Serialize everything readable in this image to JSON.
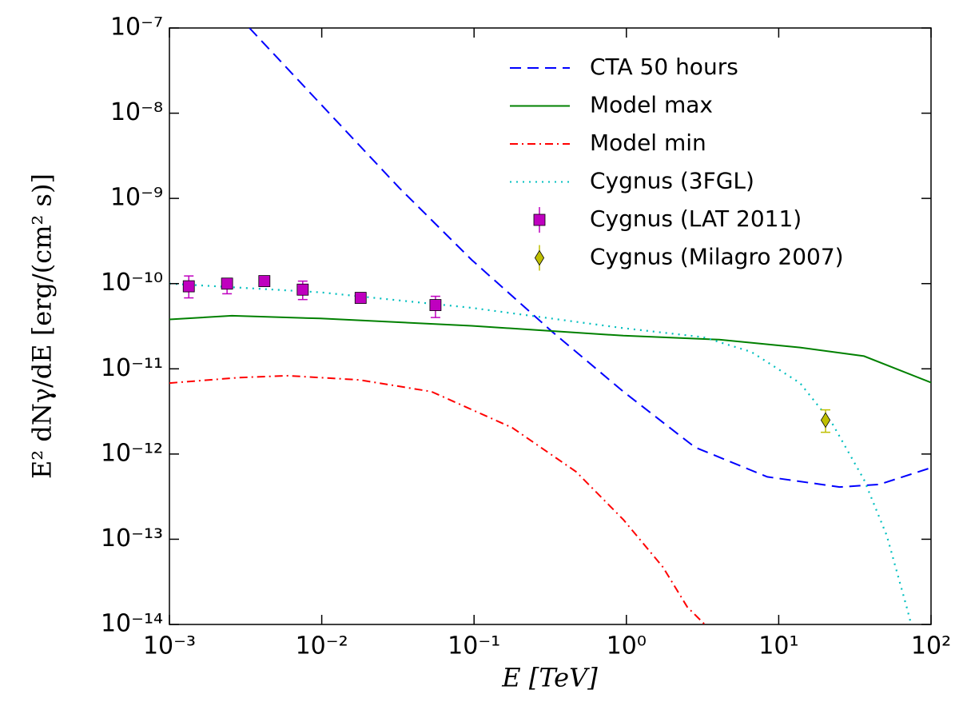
{
  "chart_data": {
    "type": "line",
    "xlabel": "E [TeV]",
    "ylabel": "E² dNγ/dE [erg/(cm² s)]",
    "xscale": "log",
    "yscale": "log",
    "xlim": [
      0.001,
      100
    ],
    "ylim": [
      1e-14,
      1e-07
    ],
    "xticks": [
      {
        "value": 0.001,
        "label": "10⁻³"
      },
      {
        "value": 0.01,
        "label": "10⁻²"
      },
      {
        "value": 0.1,
        "label": "10⁻¹"
      },
      {
        "value": 1,
        "label": "10⁰"
      },
      {
        "value": 10,
        "label": "10¹"
      },
      {
        "value": 100,
        "label": "10²"
      }
    ],
    "yticks": [
      {
        "value": 1e-14,
        "label": "10⁻¹⁴"
      },
      {
        "value": 1e-13,
        "label": "10⁻¹³"
      },
      {
        "value": 1e-12,
        "label": "10⁻¹²"
      },
      {
        "value": 1e-11,
        "label": "10⁻¹¹"
      },
      {
        "value": 1e-10,
        "label": "10⁻¹⁰"
      },
      {
        "value": 1e-09,
        "label": "10⁻⁹"
      },
      {
        "value": 1e-08,
        "label": "10⁻⁸"
      },
      {
        "value": 1e-07,
        "label": "10⁻⁷"
      }
    ],
    "legend": "upper right",
    "series": [
      {
        "name": "CTA 50 hours",
        "color": "#0000ff",
        "linestyle": "dashed",
        "x": [
          0.00335,
          0.0098,
          0.0324,
          0.0964,
          0.324,
          0.955,
          2.82,
          8.41,
          25.1,
          45.7,
          100
        ],
        "values": [
          1e-07,
          1.29e-08,
          1.32e-09,
          1.9e-10,
          2.75e-11,
          5.4e-12,
          1.2e-12,
          5.4e-13,
          4.1e-13,
          4.4e-13,
          6.9e-13
        ]
      },
      {
        "name": "Model max",
        "color": "#008000",
        "linestyle": "solid",
        "x": [
          0.001,
          0.00257,
          0.0098,
          0.0964,
          0.955,
          4.07,
          13.8,
          36.3,
          100
        ],
        "values": [
          3.8e-11,
          4.2e-11,
          3.9e-11,
          3.2e-11,
          2.45e-11,
          2.2e-11,
          1.78e-11,
          1.41e-11,
          6.9e-12
        ]
      },
      {
        "name": "Model min",
        "color": "#ff0000",
        "linestyle": "dashdot",
        "x": [
          0.001,
          0.00288,
          0.00603,
          0.0178,
          0.0525,
          0.178,
          0.468,
          0.955,
          1.74,
          2.51,
          3.27
        ],
        "values": [
          6.8e-12,
          7.9e-12,
          8.3e-12,
          7.4e-12,
          5.4e-12,
          2.04e-12,
          6.2e-13,
          1.7e-13,
          4.7e-14,
          1.6e-14,
          1e-14
        ]
      },
      {
        "name": "Cygnus (3FGL)",
        "color": "#00bfbf",
        "linestyle": "dotted",
        "x": [
          0.001,
          0.0098,
          0.0964,
          0.955,
          3.2,
          6.61,
          13.8,
          22.4,
          36.3,
          51.3,
          69.2,
          74.1
        ],
        "values": [
          1e-10,
          7.9e-11,
          5.2e-11,
          3e-11,
          2.35e-11,
          1.58e-11,
          6.8e-12,
          2.3e-12,
          5e-13,
          1.1e-13,
          1.6e-14,
          1e-14
        ]
      },
      {
        "name": "Cygnus (LAT 2011)",
        "color": "#bf00bf",
        "marker": "square",
        "x": [
          0.00134,
          0.00239,
          0.0042,
          0.0075,
          0.018,
          0.0558
        ],
        "values": [
          9.3e-11,
          1e-10,
          1.07e-10,
          8.5e-11,
          6.8e-11,
          5.6e-11
        ],
        "y_upper": [
          1.23e-10,
          1.15e-10,
          1.17e-10,
          1.07e-10,
          7.8e-11,
          7.1e-11
        ],
        "y_lower": [
          6.8e-11,
          7.6e-11,
          9.5e-11,
          6.5e-11,
          6e-11,
          4e-11
        ]
      },
      {
        "name": "Cygnus (Milagro 2007)",
        "color": "#bfbf00",
        "marker": "diamond",
        "x": [
          20.3
        ],
        "values": [
          2.5e-12
        ],
        "y_upper": [
          3.3e-12
        ],
        "y_lower": [
          1.8e-12
        ]
      }
    ]
  }
}
